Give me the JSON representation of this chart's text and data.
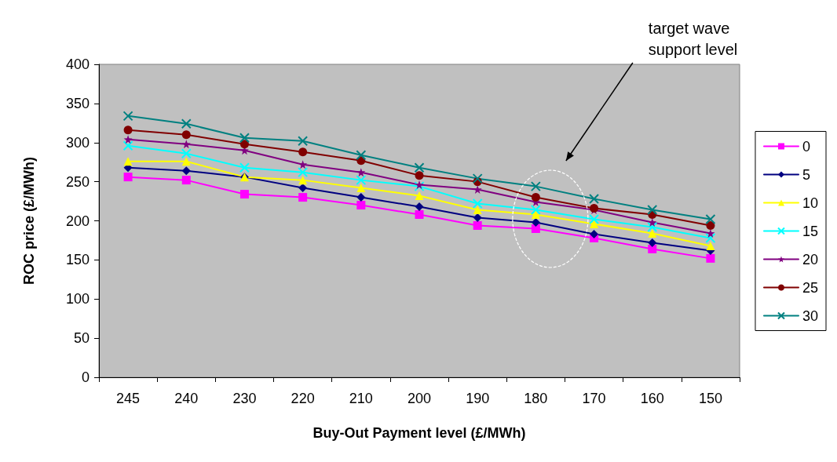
{
  "chart_data": {
    "type": "line",
    "xlabel": "Buy-Out Payment level (£/MWh)",
    "ylabel": "ROC price (£/MWh)",
    "categories": [
      "245",
      "240",
      "230",
      "220",
      "210",
      "200",
      "190",
      "180",
      "170",
      "160",
      "150"
    ],
    "ylim": [
      0,
      400
    ],
    "yticks": [
      0,
      50,
      100,
      150,
      200,
      250,
      300,
      350,
      400
    ],
    "grid": false,
    "legend": "right",
    "series": [
      {
        "name": "0",
        "color": "#ff00ff",
        "marker": "square",
        "values": [
          256,
          252,
          234,
          230,
          220,
          208,
          194,
          190,
          178,
          164,
          152
        ]
      },
      {
        "name": "5",
        "color": "#000080",
        "marker": "diamond",
        "values": [
          268,
          264,
          256,
          242,
          230,
          218,
          204,
          198,
          183,
          172,
          162
        ]
      },
      {
        "name": "10",
        "color": "#ffff00",
        "marker": "triangle",
        "values": [
          276,
          276,
          256,
          252,
          242,
          232,
          214,
          208,
          196,
          184,
          168
        ]
      },
      {
        "name": "15",
        "color": "#00ffff",
        "marker": "cross",
        "values": [
          296,
          286,
          268,
          262,
          252,
          244,
          222,
          214,
          202,
          192,
          178
        ]
      },
      {
        "name": "20",
        "color": "#800080",
        "marker": "star",
        "values": [
          304,
          298,
          290,
          272,
          262,
          246,
          240,
          224,
          214,
          198,
          184
        ]
      },
      {
        "name": "25",
        "color": "#800000",
        "marker": "circle",
        "values": [
          316,
          310,
          298,
          288,
          277,
          258,
          250,
          230,
          216,
          208,
          194
        ]
      },
      {
        "name": "30",
        "color": "#008080",
        "marker": "cross",
        "values": [
          334,
          324,
          306,
          302,
          284,
          268,
          254,
          244,
          228,
          214,
          202
        ]
      }
    ],
    "annotations": [
      "target wave support level"
    ]
  }
}
